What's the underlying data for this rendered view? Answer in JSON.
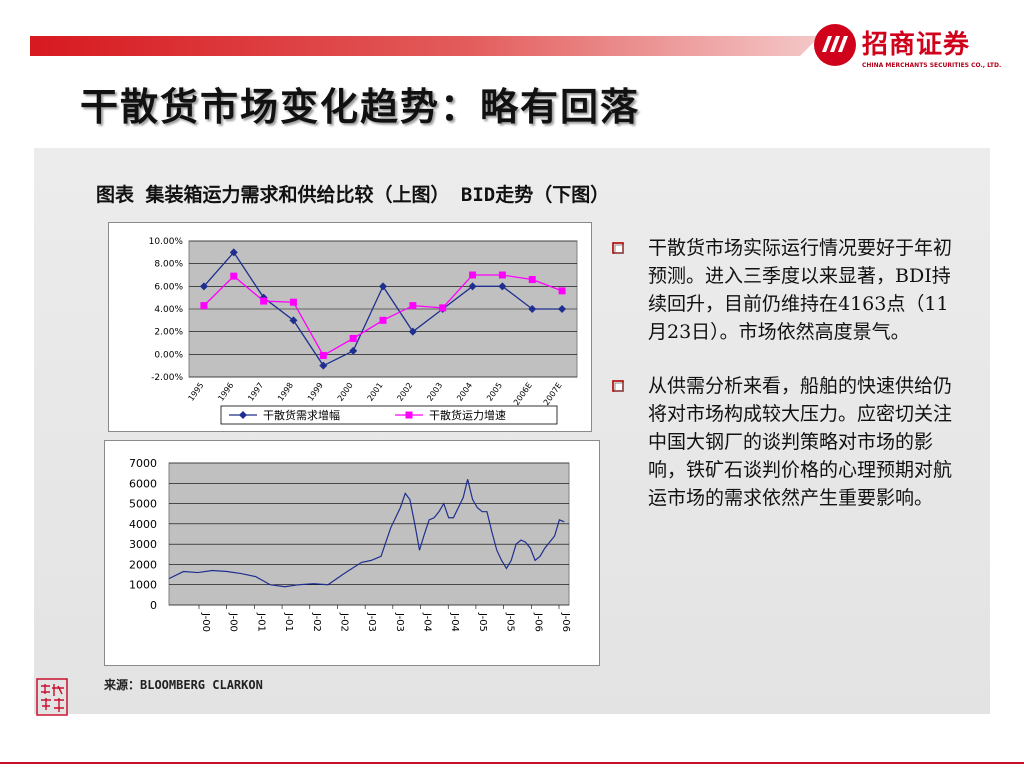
{
  "header": {
    "logo_cn": "招商证券",
    "logo_en": "CHINA MERCHANTS SECURITIES CO., LTD.",
    "title": "干散货市场变化趋势：略有回落"
  },
  "figure_caption": "图表 集装箱运力需求和供给比较（上图） BID走势（下图）",
  "colors": {
    "accent": "#d0021b",
    "series_demand": "#1f2f8f",
    "series_supply": "#ff00ff"
  },
  "chart_data": [
    {
      "type": "line",
      "categories": [
        "1995",
        "1996",
        "1997",
        "1998",
        "1999",
        "2000",
        "2001",
        "2002",
        "2003",
        "2004",
        "2005",
        "2006E",
        "2007E"
      ],
      "series": [
        {
          "name": "干散货需求增幅",
          "values": [
            6.0,
            9.0,
            5.0,
            3.0,
            -1.0,
            0.3,
            6.0,
            2.0,
            4.0,
            6.0,
            6.0,
            4.0,
            4.0
          ]
        },
        {
          "name": "干散货运力增速",
          "values": [
            4.3,
            6.9,
            4.7,
            4.6,
            -0.1,
            1.4,
            3.0,
            4.3,
            4.1,
            7.0,
            7.0,
            6.6,
            5.6
          ]
        }
      ],
      "yticks": [
        "10.00%",
        "8.00%",
        "6.00%",
        "4.00%",
        "2.00%",
        "0.00%",
        "-2.00%"
      ],
      "ylim": [
        -2,
        10
      ],
      "grid": true,
      "legend": "bottom"
    },
    {
      "type": "line",
      "x": [
        "2000-01",
        "2000-04",
        "2000-07",
        "2000-10",
        "2001-01",
        "2001-04",
        "2001-07",
        "2001-10",
        "2002-01",
        "2002-04",
        "2002-07",
        "2002-10",
        "2003-01",
        "2003-03",
        "2003-05",
        "2003-07",
        "2003-09",
        "2003-11",
        "2004-01",
        "2004-02",
        "2004-03",
        "2004-04",
        "2004-05",
        "2004-06",
        "2004-07",
        "2004-08",
        "2004-09",
        "2004-10",
        "2004-11",
        "2004-12",
        "2005-01",
        "2005-02",
        "2005-03",
        "2005-04",
        "2005-05",
        "2005-06",
        "2005-07",
        "2005-08",
        "2005-09",
        "2005-10",
        "2005-11",
        "2005-12",
        "2006-01",
        "2006-02",
        "2006-03",
        "2006-04",
        "2006-05",
        "2006-06",
        "2006-07",
        "2006-08",
        "2006-09",
        "2006-10",
        "2006-11"
      ],
      "series": [
        {
          "name": "",
          "values": [
            1300,
            1650,
            1600,
            1700,
            1650,
            1550,
            1400,
            1000,
            900,
            1000,
            1050,
            1000,
            1500,
            1800,
            2100,
            2200,
            2400,
            3800,
            4800,
            5500,
            5200,
            4000,
            2700,
            3500,
            4200,
            4300,
            4600,
            5000,
            4300,
            4300,
            4800,
            5300,
            6200,
            5200,
            4800,
            4600,
            4600,
            3600,
            2700,
            2200,
            1800,
            2200,
            3000,
            3200,
            3100,
            2800,
            2200,
            2400,
            2800,
            3100,
            3400,
            4200,
            4100
          ]
        }
      ],
      "xticks": [
        "J-00",
        "J-00",
        "J-01",
        "J-01",
        "J-02",
        "J-02",
        "J-03",
        "J-03",
        "J-04",
        "J-04",
        "J-05",
        "J-05",
        "J-06",
        "J-06"
      ],
      "yticks": [
        "7000",
        "6000",
        "5000",
        "4000",
        "3000",
        "2000",
        "1000",
        "0"
      ],
      "ylim": [
        0,
        7000
      ],
      "grid": true
    }
  ],
  "bullets": [
    {
      "icon": "square-bullet-icon",
      "text": "干散货市场实际运行情况要好于年初预测。进入三季度以来显著，BDI持续回升，目前仍维持在4163点（11月23日）。市场依然高度景气。"
    },
    {
      "icon": "square-bullet-icon",
      "text": "从供需分析来看，船舶的快速供给仍将对市场构成较大压力。应密切关注中国大钢厂的谈判策略对市场的影响，铁矿石谈判价格的心理预期对航运市场的需求依然产生重要影响。"
    }
  ],
  "source": "来源：BLOOMBERG CLARKON",
  "stamp": "致远行"
}
